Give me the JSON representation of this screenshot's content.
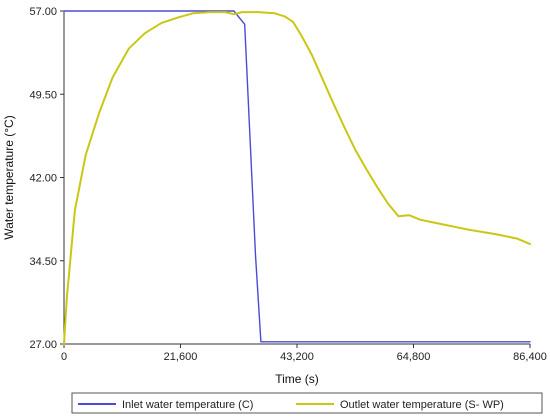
{
  "chart_data": {
    "type": "line",
    "title": "",
    "xlabel": "Time (s)",
    "ylabel": "Water temperature (°C)",
    "xlim": [
      0,
      86400
    ],
    "ylim": [
      27,
      57
    ],
    "x_ticks": [
      0,
      21600,
      43200,
      64800,
      86400
    ],
    "x_tick_labels": [
      "0",
      "21,600",
      "43,200",
      "64,800",
      "86,400"
    ],
    "y_ticks": [
      27,
      34.5,
      42,
      49.5,
      57
    ],
    "y_tick_labels": [
      "27.00",
      "34.50",
      "42.00",
      "49.50",
      "57.00"
    ],
    "grid": false,
    "legend_position": "bottom",
    "series": [
      {
        "name": "Inlet water temperature (C)",
        "color": "#4b4bd6",
        "x": [
          0,
          31500,
          33500,
          35500,
          36500,
          86400
        ],
        "y": [
          57,
          57,
          55.8,
          35,
          27.2,
          27.2
        ]
      },
      {
        "name": "Outlet water temperature (S- WP)",
        "color": "#c8c814",
        "x": [
          0,
          500,
          2000,
          4000,
          6500,
          9000,
          12000,
          15000,
          18000,
          21000,
          24000,
          27000,
          30000,
          31500,
          33000,
          36000,
          39000,
          41000,
          42500,
          44000,
          46000,
          48000,
          50000,
          52000,
          54000,
          56000,
          58000,
          60000,
          62000,
          64000,
          66000,
          70000,
          75000,
          80000,
          84000,
          86400
        ],
        "y": [
          27,
          31,
          39,
          44,
          47.8,
          51,
          53.6,
          55,
          55.9,
          56.4,
          56.8,
          56.9,
          56.9,
          56.7,
          56.9,
          56.9,
          56.8,
          56.5,
          56,
          54.8,
          53,
          50.8,
          48.6,
          46.5,
          44.5,
          42.8,
          41.2,
          39.7,
          38.5,
          38.6,
          38.2,
          37.8,
          37.3,
          36.9,
          36.5,
          36
        ]
      }
    ]
  }
}
